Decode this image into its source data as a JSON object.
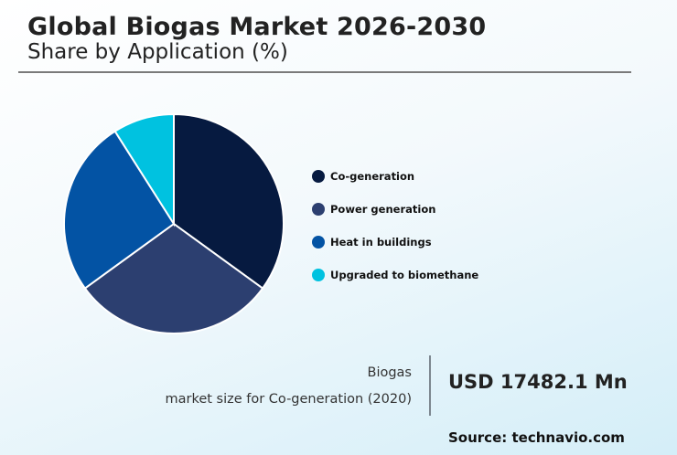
{
  "header": {
    "title": "Global Biogas Market 2026-2030",
    "subtitle": "Share by Application (%)"
  },
  "legend": {
    "items": [
      {
        "label": "Co-generation",
        "color": "#061a40"
      },
      {
        "label": "Power generation",
        "color": "#2c3f70"
      },
      {
        "label": "Heat in buildings",
        "color": "#0353a4"
      },
      {
        "label": "Upgraded to biomethane",
        "color": "#00c2e0"
      }
    ]
  },
  "info": {
    "label_line1": "Biogas",
    "label_line2": "market size for Co-generation (2020)",
    "value": "USD 17482.1 Mn",
    "source": "Source: technavio.com"
  },
  "chart_data": {
    "type": "pie",
    "title": "Global Biogas Market 2026-2030",
    "subtitle": "Share by Application (%)",
    "categories": [
      "Co-generation",
      "Power generation",
      "Heat in buildings",
      "Upgraded to biomethane"
    ],
    "values": [
      35,
      30,
      26,
      9
    ],
    "colors": [
      "#061a40",
      "#2c3f70",
      "#0353a4",
      "#00c2e0"
    ],
    "start_angle": "12 o'clock, clockwise",
    "legend_position": "right"
  }
}
